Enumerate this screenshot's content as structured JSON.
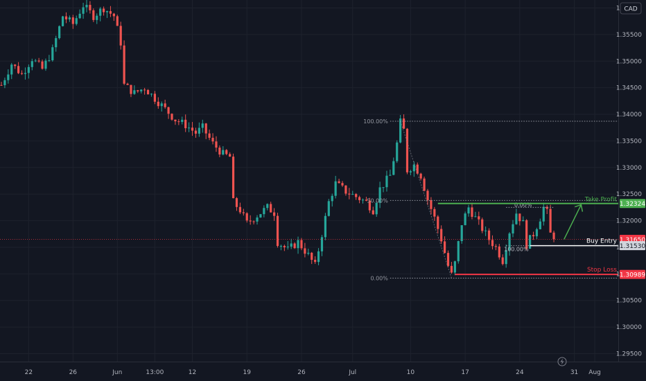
{
  "chart_data": {
    "type": "candlestick",
    "currency_badge": "CAD",
    "colors": {
      "background": "#131722",
      "up": "#26a69a",
      "down": "#ef5350",
      "fib_line": "#9598a1",
      "take_profit": "#4caf50",
      "buy_entry": "#ffffff",
      "stop_loss": "#f23645",
      "current_price": "#f23645"
    },
    "y_axis": {
      "range": [
        1.2935,
        1.3615
      ],
      "ticks": [
        "1.36000",
        "1.35500",
        "1.35000",
        "1.34500",
        "1.34000",
        "1.33500",
        "1.33000",
        "1.32500",
        "1.32000",
        "1.31500",
        "1.31000",
        "1.30500",
        "1.30000",
        "1.29500"
      ],
      "tick_values": [
        1.36,
        1.355,
        1.35,
        1.345,
        1.34,
        1.335,
        1.33,
        1.325,
        1.32,
        1.315,
        1.31,
        1.305,
        1.3,
        1.295
      ]
    },
    "x_axis": {
      "ticks": [
        {
          "label": "22",
          "i": 8
        },
        {
          "label": "26",
          "i": 21
        },
        {
          "label": "Jun",
          "i": 34
        },
        {
          "label": "13:00",
          "i": 45
        },
        {
          "label": "12",
          "i": 56
        },
        {
          "label": "19",
          "i": 72
        },
        {
          "label": "26",
          "i": 88
        },
        {
          "label": "Jul",
          "i": 103
        },
        {
          "label": "10",
          "i": 120
        },
        {
          "label": "17",
          "i": 136
        },
        {
          "label": "24",
          "i": 152
        },
        {
          "label": "31",
          "i": 168
        },
        {
          "label": "Aug",
          "i": 174
        }
      ]
    },
    "price_path": [
      [
        0,
        1.3455
      ],
      [
        3,
        1.3495
      ],
      [
        6,
        1.3475
      ],
      [
        9,
        1.3505
      ],
      [
        12,
        1.3485
      ],
      [
        15,
        1.352
      ],
      [
        18,
        1.3585
      ],
      [
        21,
        1.357
      ],
      [
        24,
        1.3605
      ],
      [
        27,
        1.3585
      ],
      [
        30,
        1.36
      ],
      [
        33,
        1.3585
      ],
      [
        35,
        1.3535
      ],
      [
        36,
        1.3455
      ],
      [
        39,
        1.344
      ],
      [
        42,
        1.345
      ],
      [
        45,
        1.343
      ],
      [
        48,
        1.341
      ],
      [
        51,
        1.339
      ],
      [
        54,
        1.338
      ],
      [
        57,
        1.3365
      ],
      [
        59,
        1.3375
      ],
      [
        62,
        1.3345
      ],
      [
        65,
        1.3325
      ],
      [
        67,
        1.332
      ],
      [
        68,
        1.3235
      ],
      [
        70,
        1.322
      ],
      [
        72,
        1.3195
      ],
      [
        75,
        1.321
      ],
      [
        78,
        1.3225
      ],
      [
        80,
        1.3215
      ],
      [
        81,
        1.316
      ],
      [
        84,
        1.3145
      ],
      [
        87,
        1.316
      ],
      [
        90,
        1.3135
      ],
      [
        92,
        1.3115
      ],
      [
        94,
        1.3175
      ],
      [
        96,
        1.3235
      ],
      [
        98,
        1.327
      ],
      [
        101,
        1.3255
      ],
      [
        104,
        1.3245
      ],
      [
        107,
        1.3235
      ],
      [
        109,
        1.322
      ],
      [
        111,
        1.326
      ],
      [
        114,
        1.3285
      ],
      [
        116,
        1.3345
      ],
      [
        117,
        1.3385
      ],
      [
        118,
        1.337
      ],
      [
        119,
        1.3295
      ],
      [
        121,
        1.3305
      ],
      [
        123,
        1.3285
      ],
      [
        125,
        1.324
      ],
      [
        127,
        1.3205
      ],
      [
        129,
        1.3165
      ],
      [
        131,
        1.3115
      ],
      [
        132,
        1.3098
      ],
      [
        133,
        1.312
      ],
      [
        135,
        1.3195
      ],
      [
        137,
        1.3225
      ],
      [
        139,
        1.3205
      ],
      [
        141,
        1.3185
      ],
      [
        143,
        1.3165
      ],
      [
        145,
        1.315
      ],
      [
        147,
        1.3125
      ],
      [
        149,
        1.318
      ],
      [
        151,
        1.3215
      ],
      [
        153,
        1.3195
      ],
      [
        154,
        1.3155
      ],
      [
        156,
        1.3175
      ],
      [
        158,
        1.3205
      ],
      [
        159,
        1.3225
      ],
      [
        160,
        1.3215
      ],
      [
        161,
        1.3175
      ],
      [
        162,
        1.3165
      ]
    ],
    "current_price": 1.3165,
    "levels": [
      {
        "name": "take-profit",
        "label": "Take Profit",
        "value": 1.32324,
        "value_label": "1.32324"
      },
      {
        "name": "buy-entry",
        "label": "Buy Entry",
        "value": 1.3153,
        "value_label": "1.31530"
      },
      {
        "name": "stop-loss",
        "label": "Stop Loss",
        "value": 1.30989,
        "value_label": "1.30989"
      }
    ],
    "current_price_label": "1.31650",
    "fib_large": [
      {
        "label": "100.00%",
        "value": 1.3387
      },
      {
        "label": "50.00%",
        "value": 1.3238
      },
      {
        "label": "0.00%",
        "value": 1.3092
      }
    ],
    "fib_small": [
      {
        "label": "0.00%",
        "value": 1.3225
      },
      {
        "label": "100.00%",
        "value": 1.3153
      }
    ]
  }
}
